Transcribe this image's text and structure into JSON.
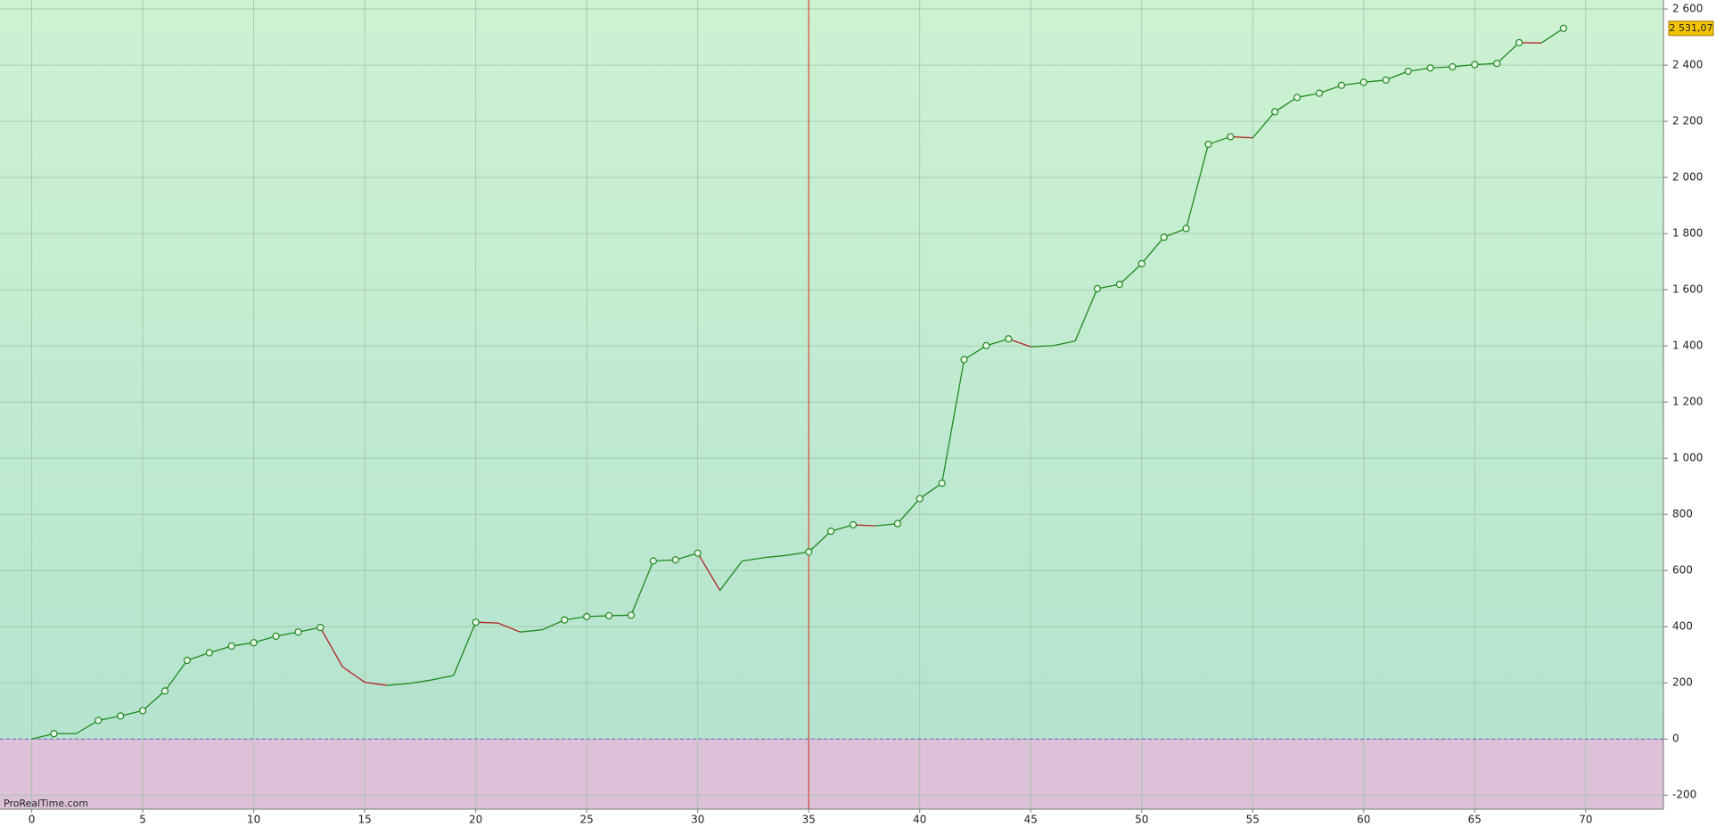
{
  "chart_data": {
    "type": "line",
    "source": "ProRealTime.com",
    "x": [
      0,
      1,
      2,
      3,
      4,
      5,
      6,
      7,
      8,
      9,
      10,
      11,
      12,
      13,
      14,
      15,
      16,
      17,
      18,
      19,
      20,
      21,
      22,
      23,
      24,
      25,
      26,
      27,
      28,
      29,
      30,
      31,
      32,
      33,
      34,
      35,
      36,
      37,
      38,
      39,
      40,
      41,
      42,
      43,
      44,
      45,
      46,
      47,
      48,
      49,
      50,
      51,
      52,
      53,
      54,
      55,
      56,
      57,
      58,
      59,
      60,
      61,
      62,
      63,
      64,
      65,
      66,
      67,
      68,
      69
    ],
    "series": [
      {
        "up_color": "#1f8a1f",
        "down_color": "#b22222",
        "values": [
          0,
          19,
          19,
          66,
          82,
          101,
          171,
          280,
          307,
          331,
          343,
          366,
          381,
          397,
          257,
          202,
          191,
          198,
          210,
          226,
          416,
          413,
          381,
          389,
          424,
          436,
          439,
          441,
          634,
          638,
          662,
          529,
          634,
          646,
          654,
          666,
          740,
          763,
          759,
          767,
          856,
          911,
          1351,
          1401,
          1425,
          1397,
          1401,
          1417,
          1604,
          1619,
          1693,
          1787,
          1818,
          2118,
          2145,
          2141,
          2234,
          2285,
          2300,
          2328,
          2339,
          2347,
          2378,
          2390,
          2394,
          2402,
          2406,
          2480,
          2479,
          2531.07
        ],
        "value_labels": [
          null,
          null,
          null,
          null,
          null,
          null,
          null,
          null,
          null,
          null,
          null,
          null,
          null,
          null,
          null,
          null,
          null,
          null,
          null,
          null,
          null,
          null,
          null,
          null,
          null,
          null,
          null,
          null,
          null,
          null,
          null,
          null,
          null,
          null,
          null,
          null,
          null,
          null,
          null,
          null,
          null,
          null,
          null,
          null,
          null,
          null,
          null,
          null,
          null,
          null,
          null,
          null,
          null,
          null,
          null,
          null,
          null,
          null,
          null,
          null,
          null,
          null,
          null,
          null,
          null,
          null,
          null,
          null,
          null,
          "2 531,07"
        ]
      }
    ],
    "cursor_x": 35,
    "xlim": [
      -1.43,
      73.5
    ],
    "ylim": [
      -250,
      2632
    ],
    "xticks": [
      0,
      5,
      10,
      15,
      20,
      25,
      30,
      35,
      40,
      45,
      50,
      55,
      60,
      65,
      70
    ],
    "yticks": [
      {
        "value": -200,
        "label": "-200"
      },
      0,
      200,
      400,
      600,
      800,
      {
        "value": 1000,
        "label": "1 000"
      },
      {
        "value": 1200,
        "label": "1 200"
      },
      {
        "value": 1400,
        "label": "1 400"
      },
      {
        "value": 1600,
        "label": "1 600"
      },
      {
        "value": 1800,
        "label": "1 800"
      },
      {
        "value": 2000,
        "label": "2 000"
      },
      {
        "value": 2200,
        "label": "2 200"
      },
      {
        "value": 2400,
        "label": "2 400"
      },
      {
        "value": 2600,
        "label": "2 600"
      }
    ],
    "grid": true
  }
}
